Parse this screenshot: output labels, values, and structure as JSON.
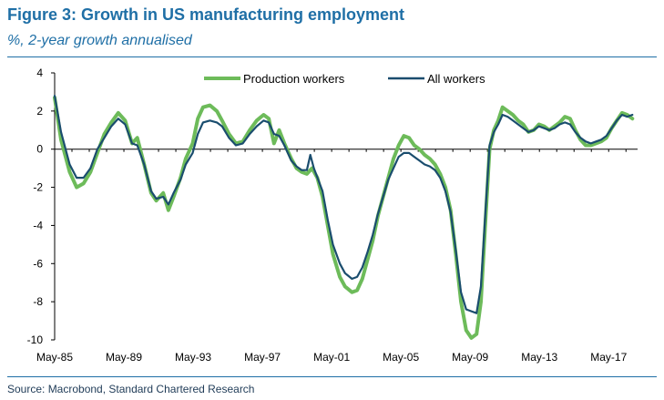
{
  "title": "Figure 3: Growth in US manufacturing employment",
  "subtitle": "%, 2-year growth annualised",
  "source": "Source: Macrobond, Standard Chartered Research",
  "colors": {
    "heading": "#1f6fa6",
    "production": "#6dbb5a",
    "all": "#1a4d6e",
    "axis": "#000000"
  },
  "chart_data": {
    "type": "line",
    "xlabel": "",
    "ylabel": "",
    "xlim": [
      1985.33,
      2019.0
    ],
    "ylim": [
      -10,
      4
    ],
    "yticks": [
      4,
      2,
      0,
      -2,
      -4,
      -6,
      -8,
      -10
    ],
    "xticks": [
      {
        "label": "May-85",
        "value": 1985.33
      },
      {
        "label": "May-89",
        "value": 1989.33
      },
      {
        "label": "May-93",
        "value": 1993.33
      },
      {
        "label": "May-97",
        "value": 1997.33
      },
      {
        "label": "May-01",
        "value": 2001.33
      },
      {
        "label": "May-05",
        "value": 2005.33
      },
      {
        "label": "May-09",
        "value": 2009.33
      },
      {
        "label": "May-13",
        "value": 2013.33
      },
      {
        "label": "May-17",
        "value": 2017.33
      }
    ],
    "grid": false,
    "legend_position": "top-center",
    "series": [
      {
        "name": "Production workers",
        "color": "#6dbb5a",
        "points": [
          [
            1985.33,
            2.7
          ],
          [
            1985.7,
            0.5
          ],
          [
            1986.2,
            -1.2
          ],
          [
            1986.6,
            -2.0
          ],
          [
            1987.0,
            -1.8
          ],
          [
            1987.4,
            -1.2
          ],
          [
            1987.8,
            -0.2
          ],
          [
            1988.2,
            0.8
          ],
          [
            1988.6,
            1.4
          ],
          [
            1989.0,
            1.9
          ],
          [
            1989.4,
            1.5
          ],
          [
            1989.8,
            0.3
          ],
          [
            1990.1,
            0.6
          ],
          [
            1990.5,
            -0.8
          ],
          [
            1990.9,
            -2.3
          ],
          [
            1991.2,
            -2.7
          ],
          [
            1991.6,
            -2.3
          ],
          [
            1991.9,
            -3.2
          ],
          [
            1992.2,
            -2.5
          ],
          [
            1992.6,
            -1.5
          ],
          [
            1992.9,
            -0.5
          ],
          [
            1993.3,
            0.3
          ],
          [
            1993.6,
            1.6
          ],
          [
            1993.9,
            2.2
          ],
          [
            1994.3,
            2.3
          ],
          [
            1994.7,
            2.0
          ],
          [
            1995.0,
            1.5
          ],
          [
            1995.4,
            0.8
          ],
          [
            1995.8,
            0.3
          ],
          [
            1996.2,
            0.4
          ],
          [
            1996.6,
            1.0
          ],
          [
            1997.0,
            1.5
          ],
          [
            1997.4,
            1.8
          ],
          [
            1997.7,
            1.6
          ],
          [
            1998.0,
            0.3
          ],
          [
            1998.3,
            1.0
          ],
          [
            1998.6,
            0.3
          ],
          [
            1999.0,
            -0.5
          ],
          [
            1999.3,
            -1.0
          ],
          [
            1999.6,
            -1.2
          ],
          [
            1999.9,
            -1.3
          ],
          [
            2000.2,
            -1.0
          ],
          [
            2000.5,
            -1.5
          ],
          [
            2000.8,
            -2.5
          ],
          [
            2001.1,
            -4.0
          ],
          [
            2001.4,
            -5.5
          ],
          [
            2001.8,
            -6.7
          ],
          [
            2002.1,
            -7.2
          ],
          [
            2002.5,
            -7.5
          ],
          [
            2002.8,
            -7.4
          ],
          [
            2003.1,
            -6.8
          ],
          [
            2003.4,
            -5.8
          ],
          [
            2003.7,
            -4.8
          ],
          [
            2004.0,
            -3.5
          ],
          [
            2004.3,
            -2.5
          ],
          [
            2004.6,
            -1.5
          ],
          [
            2004.9,
            -0.5
          ],
          [
            2005.2,
            0.2
          ],
          [
            2005.5,
            0.7
          ],
          [
            2005.8,
            0.6
          ],
          [
            2006.1,
            0.2
          ],
          [
            2006.4,
            0.0
          ],
          [
            2006.7,
            -0.3
          ],
          [
            2007.0,
            -0.5
          ],
          [
            2007.3,
            -0.8
          ],
          [
            2007.6,
            -1.3
          ],
          [
            2007.9,
            -2.0
          ],
          [
            2008.2,
            -3.2
          ],
          [
            2008.5,
            -5.5
          ],
          [
            2008.8,
            -8.0
          ],
          [
            2009.1,
            -9.5
          ],
          [
            2009.4,
            -9.9
          ],
          [
            2009.7,
            -9.7
          ],
          [
            2009.95,
            -8.0
          ],
          [
            2010.2,
            -4.0
          ],
          [
            2010.45,
            0.0
          ],
          [
            2010.7,
            1.0
          ],
          [
            2010.95,
            1.5
          ],
          [
            2011.2,
            2.2
          ],
          [
            2011.5,
            2.0
          ],
          [
            2011.8,
            1.8
          ],
          [
            2012.1,
            1.5
          ],
          [
            2012.4,
            1.3
          ],
          [
            2012.7,
            0.9
          ],
          [
            2013.0,
            1.0
          ],
          [
            2013.3,
            1.3
          ],
          [
            2013.6,
            1.2
          ],
          [
            2013.9,
            1.0
          ],
          [
            2014.2,
            1.2
          ],
          [
            2014.5,
            1.4
          ],
          [
            2014.8,
            1.7
          ],
          [
            2015.1,
            1.6
          ],
          [
            2015.4,
            1.0
          ],
          [
            2015.7,
            0.5
          ],
          [
            2016.0,
            0.2
          ],
          [
            2016.3,
            0.2
          ],
          [
            2016.6,
            0.3
          ],
          [
            2016.9,
            0.4
          ],
          [
            2017.2,
            0.6
          ],
          [
            2017.5,
            1.1
          ],
          [
            2017.8,
            1.5
          ],
          [
            2018.1,
            1.9
          ],
          [
            2018.4,
            1.8
          ],
          [
            2018.7,
            1.6
          ]
        ]
      },
      {
        "name": "All workers",
        "color": "#1a4d6e",
        "points": [
          [
            1985.33,
            2.8
          ],
          [
            1985.7,
            0.9
          ],
          [
            1986.2,
            -0.8
          ],
          [
            1986.6,
            -1.5
          ],
          [
            1987.0,
            -1.5
          ],
          [
            1987.4,
            -1.0
          ],
          [
            1987.8,
            0.0
          ],
          [
            1988.2,
            0.6
          ],
          [
            1988.6,
            1.2
          ],
          [
            1989.0,
            1.6
          ],
          [
            1989.4,
            1.3
          ],
          [
            1989.8,
            0.3
          ],
          [
            1990.1,
            0.2
          ],
          [
            1990.5,
            -0.8
          ],
          [
            1990.9,
            -2.2
          ],
          [
            1991.2,
            -2.6
          ],
          [
            1991.6,
            -2.5
          ],
          [
            1991.9,
            -2.9
          ],
          [
            1992.2,
            -2.3
          ],
          [
            1992.6,
            -1.6
          ],
          [
            1992.9,
            -0.8
          ],
          [
            1993.3,
            -0.2
          ],
          [
            1993.6,
            0.8
          ],
          [
            1993.9,
            1.4
          ],
          [
            1994.3,
            1.5
          ],
          [
            1994.7,
            1.4
          ],
          [
            1995.0,
            1.2
          ],
          [
            1995.4,
            0.6
          ],
          [
            1995.8,
            0.2
          ],
          [
            1996.2,
            0.3
          ],
          [
            1996.6,
            0.8
          ],
          [
            1997.0,
            1.2
          ],
          [
            1997.4,
            1.5
          ],
          [
            1997.7,
            1.4
          ],
          [
            1998.0,
            0.8
          ],
          [
            1998.3,
            0.7
          ],
          [
            1998.6,
            0.2
          ],
          [
            1999.0,
            -0.6
          ],
          [
            1999.3,
            -0.9
          ],
          [
            1999.6,
            -1.1
          ],
          [
            1999.9,
            -1.1
          ],
          [
            2000.1,
            -0.3
          ],
          [
            2000.3,
            -1.0
          ],
          [
            2000.8,
            -2.2
          ],
          [
            2001.1,
            -3.7
          ],
          [
            2001.4,
            -5.0
          ],
          [
            2001.8,
            -6.0
          ],
          [
            2002.1,
            -6.5
          ],
          [
            2002.5,
            -6.8
          ],
          [
            2002.8,
            -6.7
          ],
          [
            2003.1,
            -6.2
          ],
          [
            2003.4,
            -5.4
          ],
          [
            2003.7,
            -4.5
          ],
          [
            2004.0,
            -3.4
          ],
          [
            2004.3,
            -2.5
          ],
          [
            2004.6,
            -1.6
          ],
          [
            2004.9,
            -1.0
          ],
          [
            2005.2,
            -0.4
          ],
          [
            2005.5,
            -0.2
          ],
          [
            2005.8,
            -0.2
          ],
          [
            2006.1,
            -0.4
          ],
          [
            2006.4,
            -0.6
          ],
          [
            2006.7,
            -0.8
          ],
          [
            2007.0,
            -0.9
          ],
          [
            2007.3,
            -1.1
          ],
          [
            2007.6,
            -1.5
          ],
          [
            2007.9,
            -2.2
          ],
          [
            2008.2,
            -3.3
          ],
          [
            2008.5,
            -5.3
          ],
          [
            2008.8,
            -7.5
          ],
          [
            2009.1,
            -8.4
          ],
          [
            2009.4,
            -8.5
          ],
          [
            2009.7,
            -8.6
          ],
          [
            2009.95,
            -7.2
          ],
          [
            2010.2,
            -3.5
          ],
          [
            2010.45,
            0.2
          ],
          [
            2010.7,
            0.9
          ],
          [
            2010.95,
            1.3
          ],
          [
            2011.2,
            1.8
          ],
          [
            2011.5,
            1.7
          ],
          [
            2011.8,
            1.5
          ],
          [
            2012.1,
            1.3
          ],
          [
            2012.4,
            1.1
          ],
          [
            2012.7,
            0.9
          ],
          [
            2013.0,
            1.0
          ],
          [
            2013.3,
            1.2
          ],
          [
            2013.6,
            1.1
          ],
          [
            2013.9,
            1.0
          ],
          [
            2014.2,
            1.1
          ],
          [
            2014.5,
            1.3
          ],
          [
            2014.8,
            1.4
          ],
          [
            2015.1,
            1.3
          ],
          [
            2015.4,
            0.9
          ],
          [
            2015.7,
            0.6
          ],
          [
            2016.0,
            0.4
          ],
          [
            2016.3,
            0.3
          ],
          [
            2016.6,
            0.4
          ],
          [
            2016.9,
            0.5
          ],
          [
            2017.2,
            0.7
          ],
          [
            2017.5,
            1.1
          ],
          [
            2017.8,
            1.5
          ],
          [
            2018.1,
            1.8
          ],
          [
            2018.4,
            1.7
          ],
          [
            2018.7,
            1.8
          ]
        ]
      }
    ]
  }
}
